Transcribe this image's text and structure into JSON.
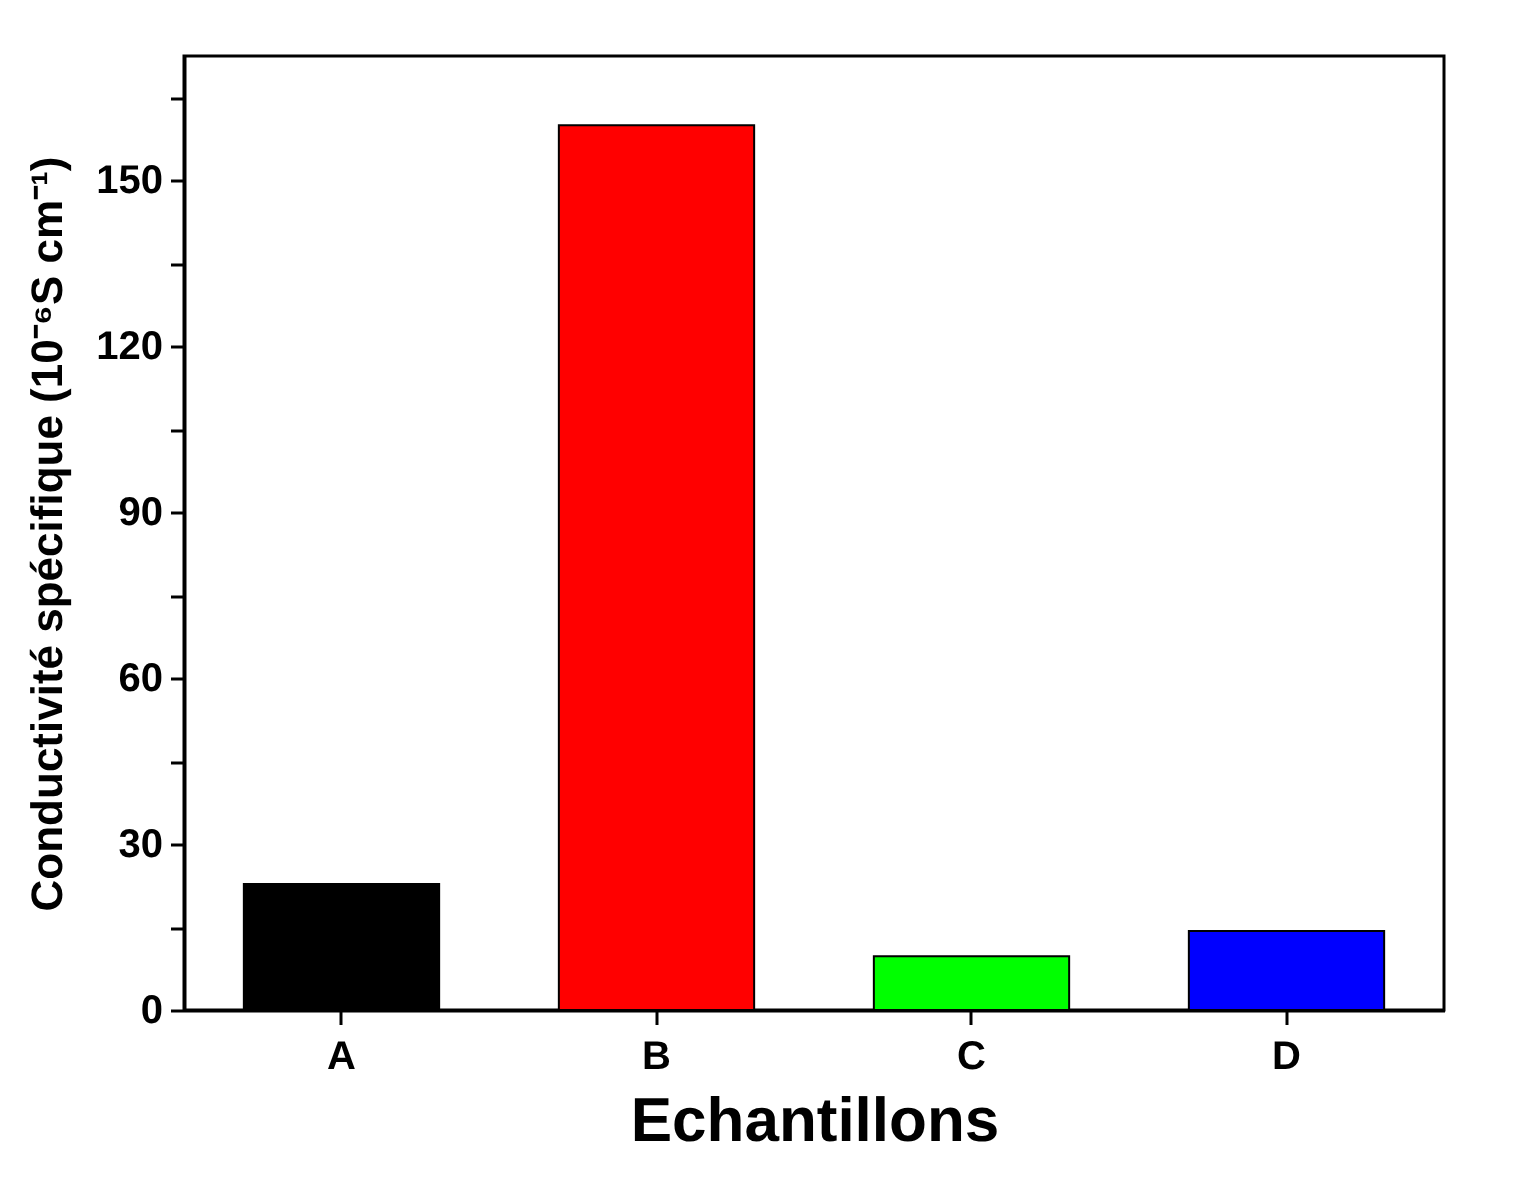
{
  "chart_data": {
    "type": "bar",
    "xlabel": "Echantillons",
    "ylabel": "Conductivité spécifique (10⁻⁶S cm⁻¹)",
    "categories": [
      "A",
      "B",
      "C",
      "D"
    ],
    "values": [
      22.8,
      160,
      9.7,
      14.3
    ],
    "colors": [
      "#000000",
      "#ff0000",
      "#00ff00",
      "#0000ff"
    ],
    "ylim": [
      0,
      172.5
    ],
    "yticks": [
      0,
      {
        "value": 15,
        "label": null
      },
      30,
      {
        "value": 45,
        "label": null
      },
      60,
      {
        "value": 75,
        "label": null
      },
      90,
      {
        "value": 105,
        "label": null
      },
      120,
      {
        "value": 135,
        "label": null
      },
      150,
      {
        "value": 165,
        "label": null
      }
    ],
    "grid": false,
    "legend": false
  }
}
